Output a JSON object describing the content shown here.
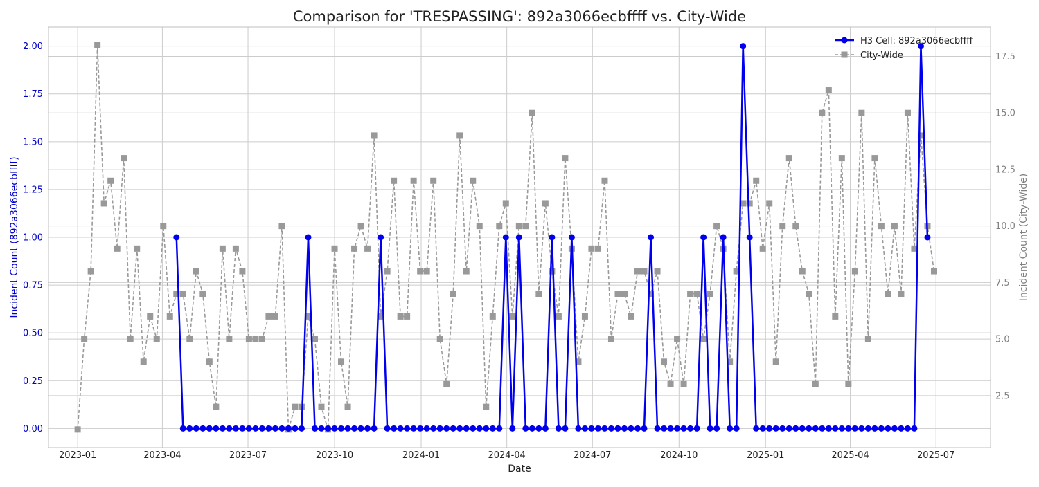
{
  "chart_data": {
    "type": "line",
    "title": "Comparison for 'TRESPASSING': 892a3066ecbffff vs. City-Wide",
    "xlabel": "Date",
    "ylabel_left": "Incident Count (892a3066ecbffff)",
    "ylabel_right": "Incident Count (City-Wide)",
    "x_ticks": [
      "2023-01",
      "2023-04",
      "2023-07",
      "2023-10",
      "2024-01",
      "2024-04",
      "2024-07",
      "2024-10",
      "2025-01",
      "2025-04",
      "2025-07"
    ],
    "y_left_ticks": [
      "0.00",
      "0.25",
      "0.50",
      "0.75",
      "1.00",
      "1.25",
      "1.50",
      "1.75",
      "2.00"
    ],
    "y_right_ticks": [
      "2.5",
      "5.0",
      "7.5",
      "10.0",
      "12.5",
      "15.0",
      "17.5"
    ],
    "ylim_left": [
      -0.1,
      2.1
    ],
    "ylim_right": [
      0.2,
      18.8
    ],
    "grid": true,
    "legend_placement": "top-right",
    "colors": {
      "h3": "#0000ee",
      "city": "#999999",
      "left_axis": "#0000cc",
      "right_axis": "#808080"
    },
    "series": [
      {
        "name": "H3 Cell: 892a3066ecbffff",
        "axis": "left",
        "marker": "circle",
        "style": "solid",
        "points": [
          [
            "2023-04-16",
            1
          ],
          [
            "2023-04-23",
            0
          ],
          [
            "2023-04-30",
            0
          ],
          [
            "2023-05-07",
            0
          ],
          [
            "2023-05-14",
            0
          ],
          [
            "2023-05-21",
            0
          ],
          [
            "2023-05-28",
            0
          ],
          [
            "2023-06-04",
            0
          ],
          [
            "2023-06-11",
            0
          ],
          [
            "2023-06-18",
            0
          ],
          [
            "2023-06-25",
            0
          ],
          [
            "2023-07-02",
            0
          ],
          [
            "2023-07-09",
            0
          ],
          [
            "2023-07-16",
            0
          ],
          [
            "2023-07-23",
            0
          ],
          [
            "2023-07-30",
            0
          ],
          [
            "2023-08-06",
            0
          ],
          [
            "2023-08-13",
            0
          ],
          [
            "2023-08-20",
            0
          ],
          [
            "2023-08-27",
            0
          ],
          [
            "2023-09-03",
            1
          ],
          [
            "2023-09-10",
            0
          ],
          [
            "2023-09-17",
            0
          ],
          [
            "2023-09-24",
            0
          ],
          [
            "2023-10-01",
            0
          ],
          [
            "2023-10-08",
            0
          ],
          [
            "2023-10-15",
            0
          ],
          [
            "2023-10-22",
            0
          ],
          [
            "2023-10-29",
            0
          ],
          [
            "2023-11-05",
            0
          ],
          [
            "2023-11-12",
            0
          ],
          [
            "2023-11-19",
            1
          ],
          [
            "2023-11-26",
            0
          ],
          [
            "2023-12-03",
            0
          ],
          [
            "2023-12-10",
            0
          ],
          [
            "2023-12-17",
            0
          ],
          [
            "2023-12-24",
            0
          ],
          [
            "2023-12-31",
            0
          ],
          [
            "2024-01-07",
            0
          ],
          [
            "2024-01-14",
            0
          ],
          [
            "2024-01-21",
            0
          ],
          [
            "2024-01-28",
            0
          ],
          [
            "2024-02-04",
            0
          ],
          [
            "2024-02-11",
            0
          ],
          [
            "2024-02-18",
            0
          ],
          [
            "2024-02-25",
            0
          ],
          [
            "2024-03-03",
            0
          ],
          [
            "2024-03-10",
            0
          ],
          [
            "2024-03-17",
            0
          ],
          [
            "2024-03-24",
            0
          ],
          [
            "2024-03-31",
            1
          ],
          [
            "2024-04-07",
            0
          ],
          [
            "2024-04-14",
            1
          ],
          [
            "2024-04-21",
            0
          ],
          [
            "2024-04-28",
            0
          ],
          [
            "2024-05-05",
            0
          ],
          [
            "2024-05-12",
            0
          ],
          [
            "2024-05-19",
            1
          ],
          [
            "2024-05-26",
            0
          ],
          [
            "2024-06-02",
            0
          ],
          [
            "2024-06-09",
            1
          ],
          [
            "2024-06-16",
            0
          ],
          [
            "2024-06-23",
            0
          ],
          [
            "2024-06-30",
            0
          ],
          [
            "2024-07-07",
            0
          ],
          [
            "2024-07-14",
            0
          ],
          [
            "2024-07-21",
            0
          ],
          [
            "2024-07-28",
            0
          ],
          [
            "2024-08-04",
            0
          ],
          [
            "2024-08-11",
            0
          ],
          [
            "2024-08-18",
            0
          ],
          [
            "2024-08-25",
            0
          ],
          [
            "2024-09-01",
            1
          ],
          [
            "2024-09-08",
            0
          ],
          [
            "2024-09-15",
            0
          ],
          [
            "2024-09-22",
            0
          ],
          [
            "2024-09-29",
            0
          ],
          [
            "2024-10-06",
            0
          ],
          [
            "2024-10-13",
            0
          ],
          [
            "2024-10-20",
            0
          ],
          [
            "2024-10-27",
            1
          ],
          [
            "2024-11-03",
            0
          ],
          [
            "2024-11-10",
            0
          ],
          [
            "2024-11-17",
            1
          ],
          [
            "2024-11-24",
            0
          ],
          [
            "2024-12-01",
            0
          ],
          [
            "2024-12-08",
            2
          ],
          [
            "2024-12-15",
            1
          ],
          [
            "2024-12-22",
            0
          ],
          [
            "2024-12-29",
            0
          ],
          [
            "2025-01-05",
            0
          ],
          [
            "2025-01-12",
            0
          ],
          [
            "2025-01-19",
            0
          ],
          [
            "2025-01-26",
            0
          ],
          [
            "2025-02-02",
            0
          ],
          [
            "2025-02-09",
            0
          ],
          [
            "2025-02-16",
            0
          ],
          [
            "2025-02-23",
            0
          ],
          [
            "2025-03-02",
            0
          ],
          [
            "2025-03-09",
            0
          ],
          [
            "2025-03-16",
            0
          ],
          [
            "2025-03-23",
            0
          ],
          [
            "2025-03-30",
            0
          ],
          [
            "2025-04-06",
            0
          ],
          [
            "2025-04-13",
            0
          ],
          [
            "2025-04-20",
            0
          ],
          [
            "2025-04-27",
            0
          ],
          [
            "2025-05-04",
            0
          ],
          [
            "2025-05-11",
            0
          ],
          [
            "2025-05-18",
            0
          ],
          [
            "2025-05-25",
            0
          ],
          [
            "2025-06-01",
            0
          ],
          [
            "2025-06-08",
            0
          ],
          [
            "2025-06-15",
            2
          ],
          [
            "2025-06-22",
            1
          ]
        ]
      },
      {
        "name": "City-Wide",
        "axis": "right",
        "marker": "square",
        "style": "dashed",
        "points": [
          [
            "2023-01-01",
            1
          ],
          [
            "2023-01-08",
            5
          ],
          [
            "2023-01-15",
            8
          ],
          [
            "2023-01-22",
            18
          ],
          [
            "2023-01-29",
            11
          ],
          [
            "2023-02-05",
            12
          ],
          [
            "2023-02-12",
            9
          ],
          [
            "2023-02-19",
            13
          ],
          [
            "2023-02-26",
            5
          ],
          [
            "2023-03-05",
            9
          ],
          [
            "2023-03-12",
            4
          ],
          [
            "2023-03-19",
            6
          ],
          [
            "2023-03-26",
            5
          ],
          [
            "2023-04-02",
            10
          ],
          [
            "2023-04-09",
            6
          ],
          [
            "2023-04-16",
            7
          ],
          [
            "2023-04-23",
            7
          ],
          [
            "2023-04-30",
            5
          ],
          [
            "2023-05-07",
            8
          ],
          [
            "2023-05-14",
            7
          ],
          [
            "2023-05-21",
            4
          ],
          [
            "2023-05-28",
            2
          ],
          [
            "2023-06-04",
            9
          ],
          [
            "2023-06-11",
            5
          ],
          [
            "2023-06-18",
            9
          ],
          [
            "2023-06-25",
            8
          ],
          [
            "2023-07-02",
            5
          ],
          [
            "2023-07-09",
            5
          ],
          [
            "2023-07-16",
            5
          ],
          [
            "2023-07-23",
            6
          ],
          [
            "2023-07-30",
            6
          ],
          [
            "2023-08-06",
            10
          ],
          [
            "2023-08-13",
            1
          ],
          [
            "2023-08-20",
            2
          ],
          [
            "2023-08-27",
            2
          ],
          [
            "2023-09-03",
            6
          ],
          [
            "2023-09-10",
            5
          ],
          [
            "2023-09-17",
            2
          ],
          [
            "2023-09-24",
            1
          ],
          [
            "2023-10-01",
            9
          ],
          [
            "2023-10-08",
            4
          ],
          [
            "2023-10-15",
            2
          ],
          [
            "2023-10-22",
            9
          ],
          [
            "2023-10-29",
            10
          ],
          [
            "2023-11-05",
            9
          ],
          [
            "2023-11-12",
            14
          ],
          [
            "2023-11-19",
            6
          ],
          [
            "2023-11-26",
            8
          ],
          [
            "2023-12-03",
            12
          ],
          [
            "2023-12-10",
            6
          ],
          [
            "2023-12-17",
            6
          ],
          [
            "2023-12-24",
            12
          ],
          [
            "2023-12-31",
            8
          ],
          [
            "2024-01-07",
            8
          ],
          [
            "2024-01-14",
            12
          ],
          [
            "2024-01-21",
            5
          ],
          [
            "2024-01-28",
            3
          ],
          [
            "2024-02-04",
            7
          ],
          [
            "2024-02-11",
            14
          ],
          [
            "2024-02-18",
            8
          ],
          [
            "2024-02-25",
            12
          ],
          [
            "2024-03-03",
            10
          ],
          [
            "2024-03-10",
            2
          ],
          [
            "2024-03-17",
            6
          ],
          [
            "2024-03-24",
            10
          ],
          [
            "2024-03-31",
            11
          ],
          [
            "2024-04-07",
            6
          ],
          [
            "2024-04-14",
            10
          ],
          [
            "2024-04-21",
            10
          ],
          [
            "2024-04-28",
            15
          ],
          [
            "2024-05-05",
            7
          ],
          [
            "2024-05-12",
            11
          ],
          [
            "2024-05-19",
            8
          ],
          [
            "2024-05-26",
            6
          ],
          [
            "2024-06-02",
            13
          ],
          [
            "2024-06-09",
            9
          ],
          [
            "2024-06-16",
            4
          ],
          [
            "2024-06-23",
            6
          ],
          [
            "2024-06-30",
            9
          ],
          [
            "2024-07-07",
            9
          ],
          [
            "2024-07-14",
            12
          ],
          [
            "2024-07-21",
            5
          ],
          [
            "2024-07-28",
            7
          ],
          [
            "2024-08-04",
            7
          ],
          [
            "2024-08-11",
            6
          ],
          [
            "2024-08-18",
            8
          ],
          [
            "2024-08-25",
            8
          ],
          [
            "2024-09-01",
            7
          ],
          [
            "2024-09-08",
            8
          ],
          [
            "2024-09-15",
            4
          ],
          [
            "2024-09-22",
            3
          ],
          [
            "2024-09-29",
            5
          ],
          [
            "2024-10-06",
            3
          ],
          [
            "2024-10-13",
            7
          ],
          [
            "2024-10-20",
            7
          ],
          [
            "2024-10-27",
            5
          ],
          [
            "2024-11-03",
            7
          ],
          [
            "2024-11-10",
            10
          ],
          [
            "2024-11-17",
            9
          ],
          [
            "2024-11-24",
            4
          ],
          [
            "2024-12-01",
            8
          ],
          [
            "2024-12-08",
            11
          ],
          [
            "2024-12-15",
            11
          ],
          [
            "2024-12-22",
            12
          ],
          [
            "2024-12-29",
            9
          ],
          [
            "2025-01-05",
            11
          ],
          [
            "2025-01-12",
            4
          ],
          [
            "2025-01-19",
            10
          ],
          [
            "2025-01-26",
            13
          ],
          [
            "2025-02-02",
            10
          ],
          [
            "2025-02-09",
            8
          ],
          [
            "2025-02-16",
            7
          ],
          [
            "2025-02-23",
            3
          ],
          [
            "2025-03-02",
            15
          ],
          [
            "2025-03-09",
            16
          ],
          [
            "2025-03-16",
            6
          ],
          [
            "2025-03-23",
            13
          ],
          [
            "2025-03-30",
            3
          ],
          [
            "2025-04-06",
            8
          ],
          [
            "2025-04-13",
            15
          ],
          [
            "2025-04-20",
            5
          ],
          [
            "2025-04-27",
            13
          ],
          [
            "2025-05-04",
            10
          ],
          [
            "2025-05-11",
            7
          ],
          [
            "2025-05-18",
            10
          ],
          [
            "2025-05-25",
            7
          ],
          [
            "2025-06-01",
            15
          ],
          [
            "2025-06-08",
            9
          ],
          [
            "2025-06-15",
            14
          ],
          [
            "2025-06-22",
            10
          ],
          [
            "2025-06-29",
            8
          ]
        ]
      }
    ]
  }
}
